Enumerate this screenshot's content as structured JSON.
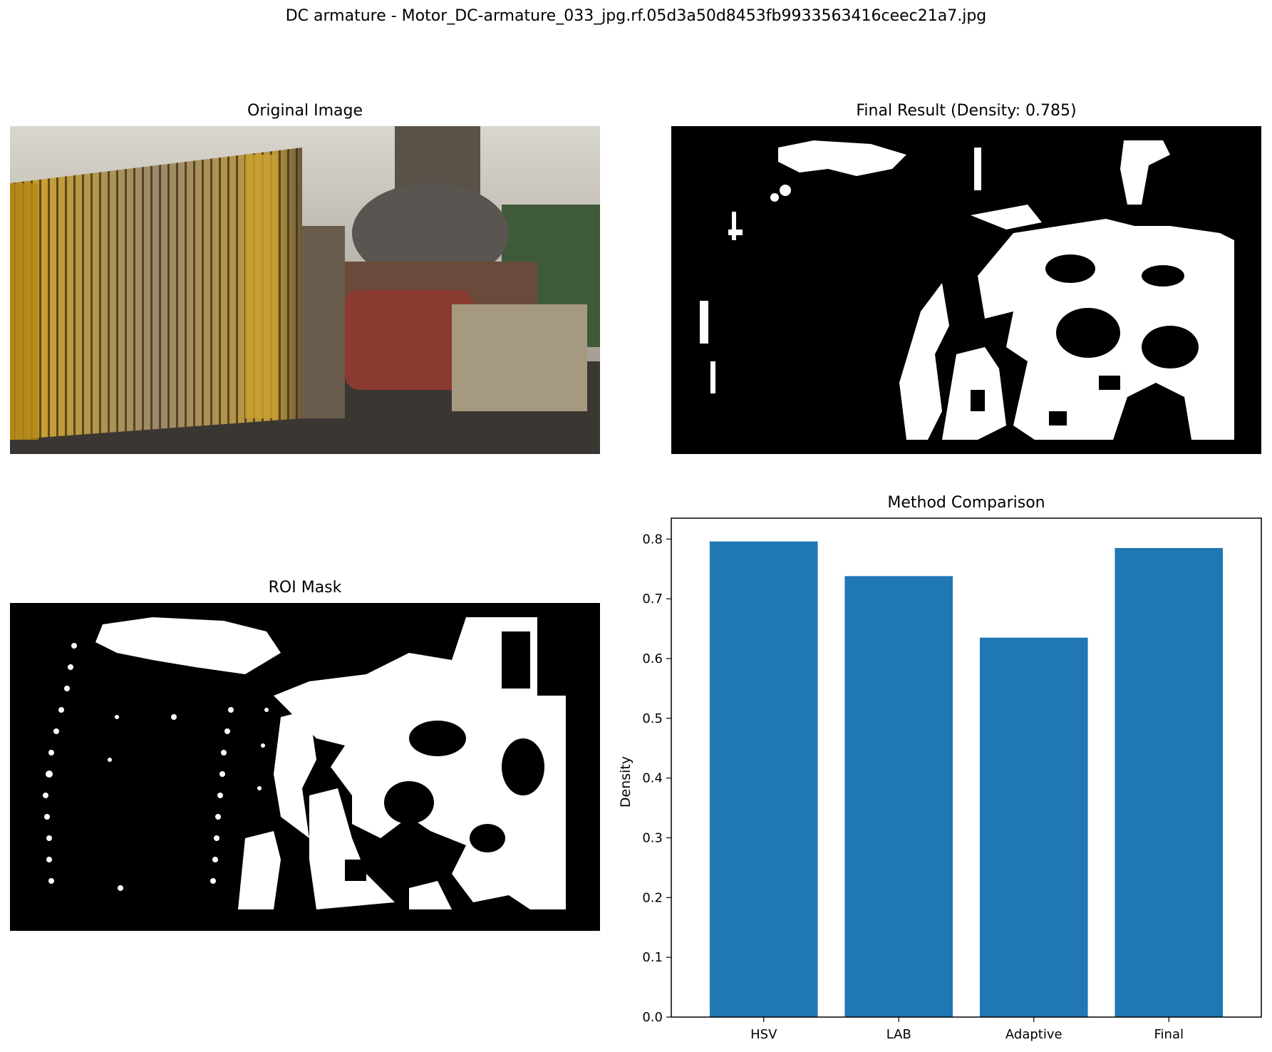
{
  "figure": {
    "suptitle": "DC armature - Motor_DC-armature_033_jpg.rf.05d3a50d8453fb9933563416ceec21a7.jpg"
  },
  "panels": {
    "original": {
      "title": "Original Image"
    },
    "final": {
      "title": "Final Result (Density: 0.785)"
    },
    "roi": {
      "title": "ROI Mask"
    },
    "comparison": {
      "title": "Method Comparison"
    }
  },
  "chart_data": {
    "type": "bar",
    "title": "Method Comparison",
    "xlabel": "",
    "ylabel": "Density",
    "categories": [
      "HSV",
      "LAB",
      "Adaptive",
      "Final"
    ],
    "values": [
      0.796,
      0.738,
      0.635,
      0.785
    ],
    "ylim": [
      0,
      0.835
    ],
    "yticks": [
      "0.0",
      "0.1",
      "0.2",
      "0.3",
      "0.4",
      "0.5",
      "0.6",
      "0.7",
      "0.8"
    ],
    "bar_color": "#1f77b4",
    "grid": false
  },
  "colors": {
    "mask_background": "#000000",
    "mask_foreground": "#ffffff"
  }
}
